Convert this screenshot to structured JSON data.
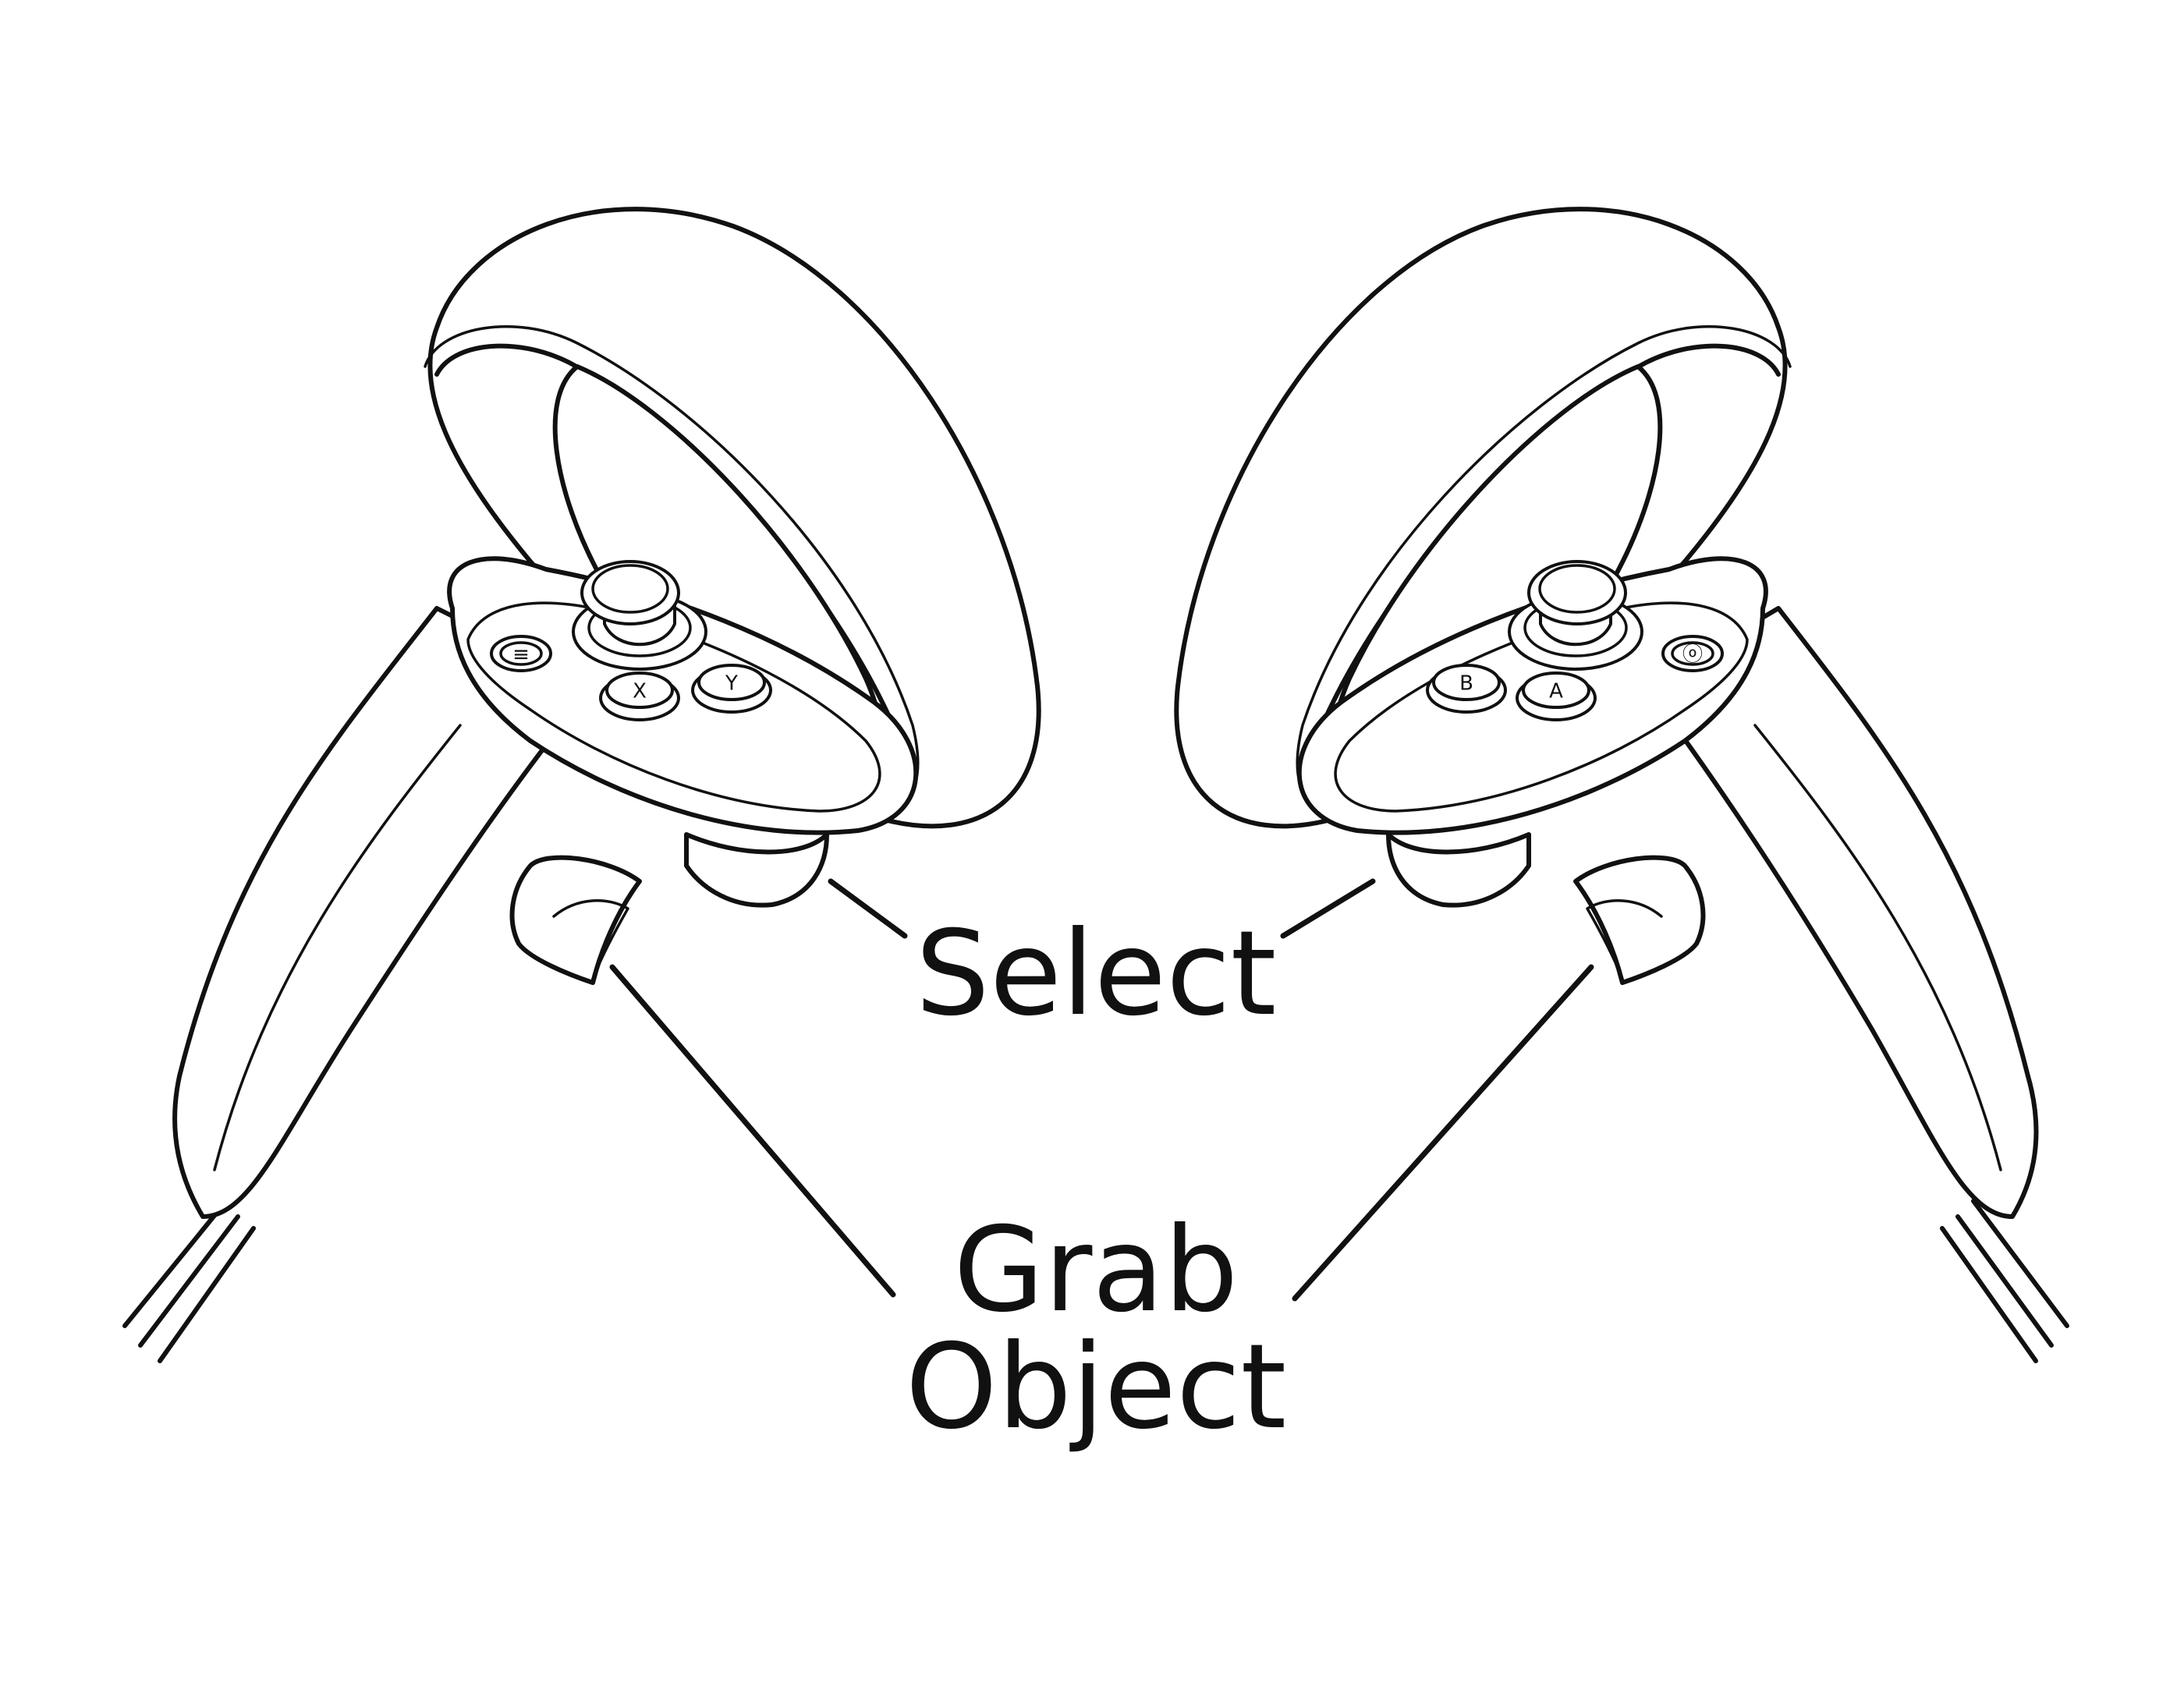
{
  "labels": {
    "select": "Select",
    "grab_line1": "Grab",
    "grab_line2": "Object"
  },
  "left_controller": {
    "buttons": {
      "menu": "≡",
      "x": "X",
      "y": "Y"
    }
  },
  "right_controller": {
    "buttons": {
      "system": "ⓞ",
      "b": "B",
      "a": "A"
    }
  },
  "colors": {
    "line": "#111111",
    "background": "#ffffff"
  }
}
